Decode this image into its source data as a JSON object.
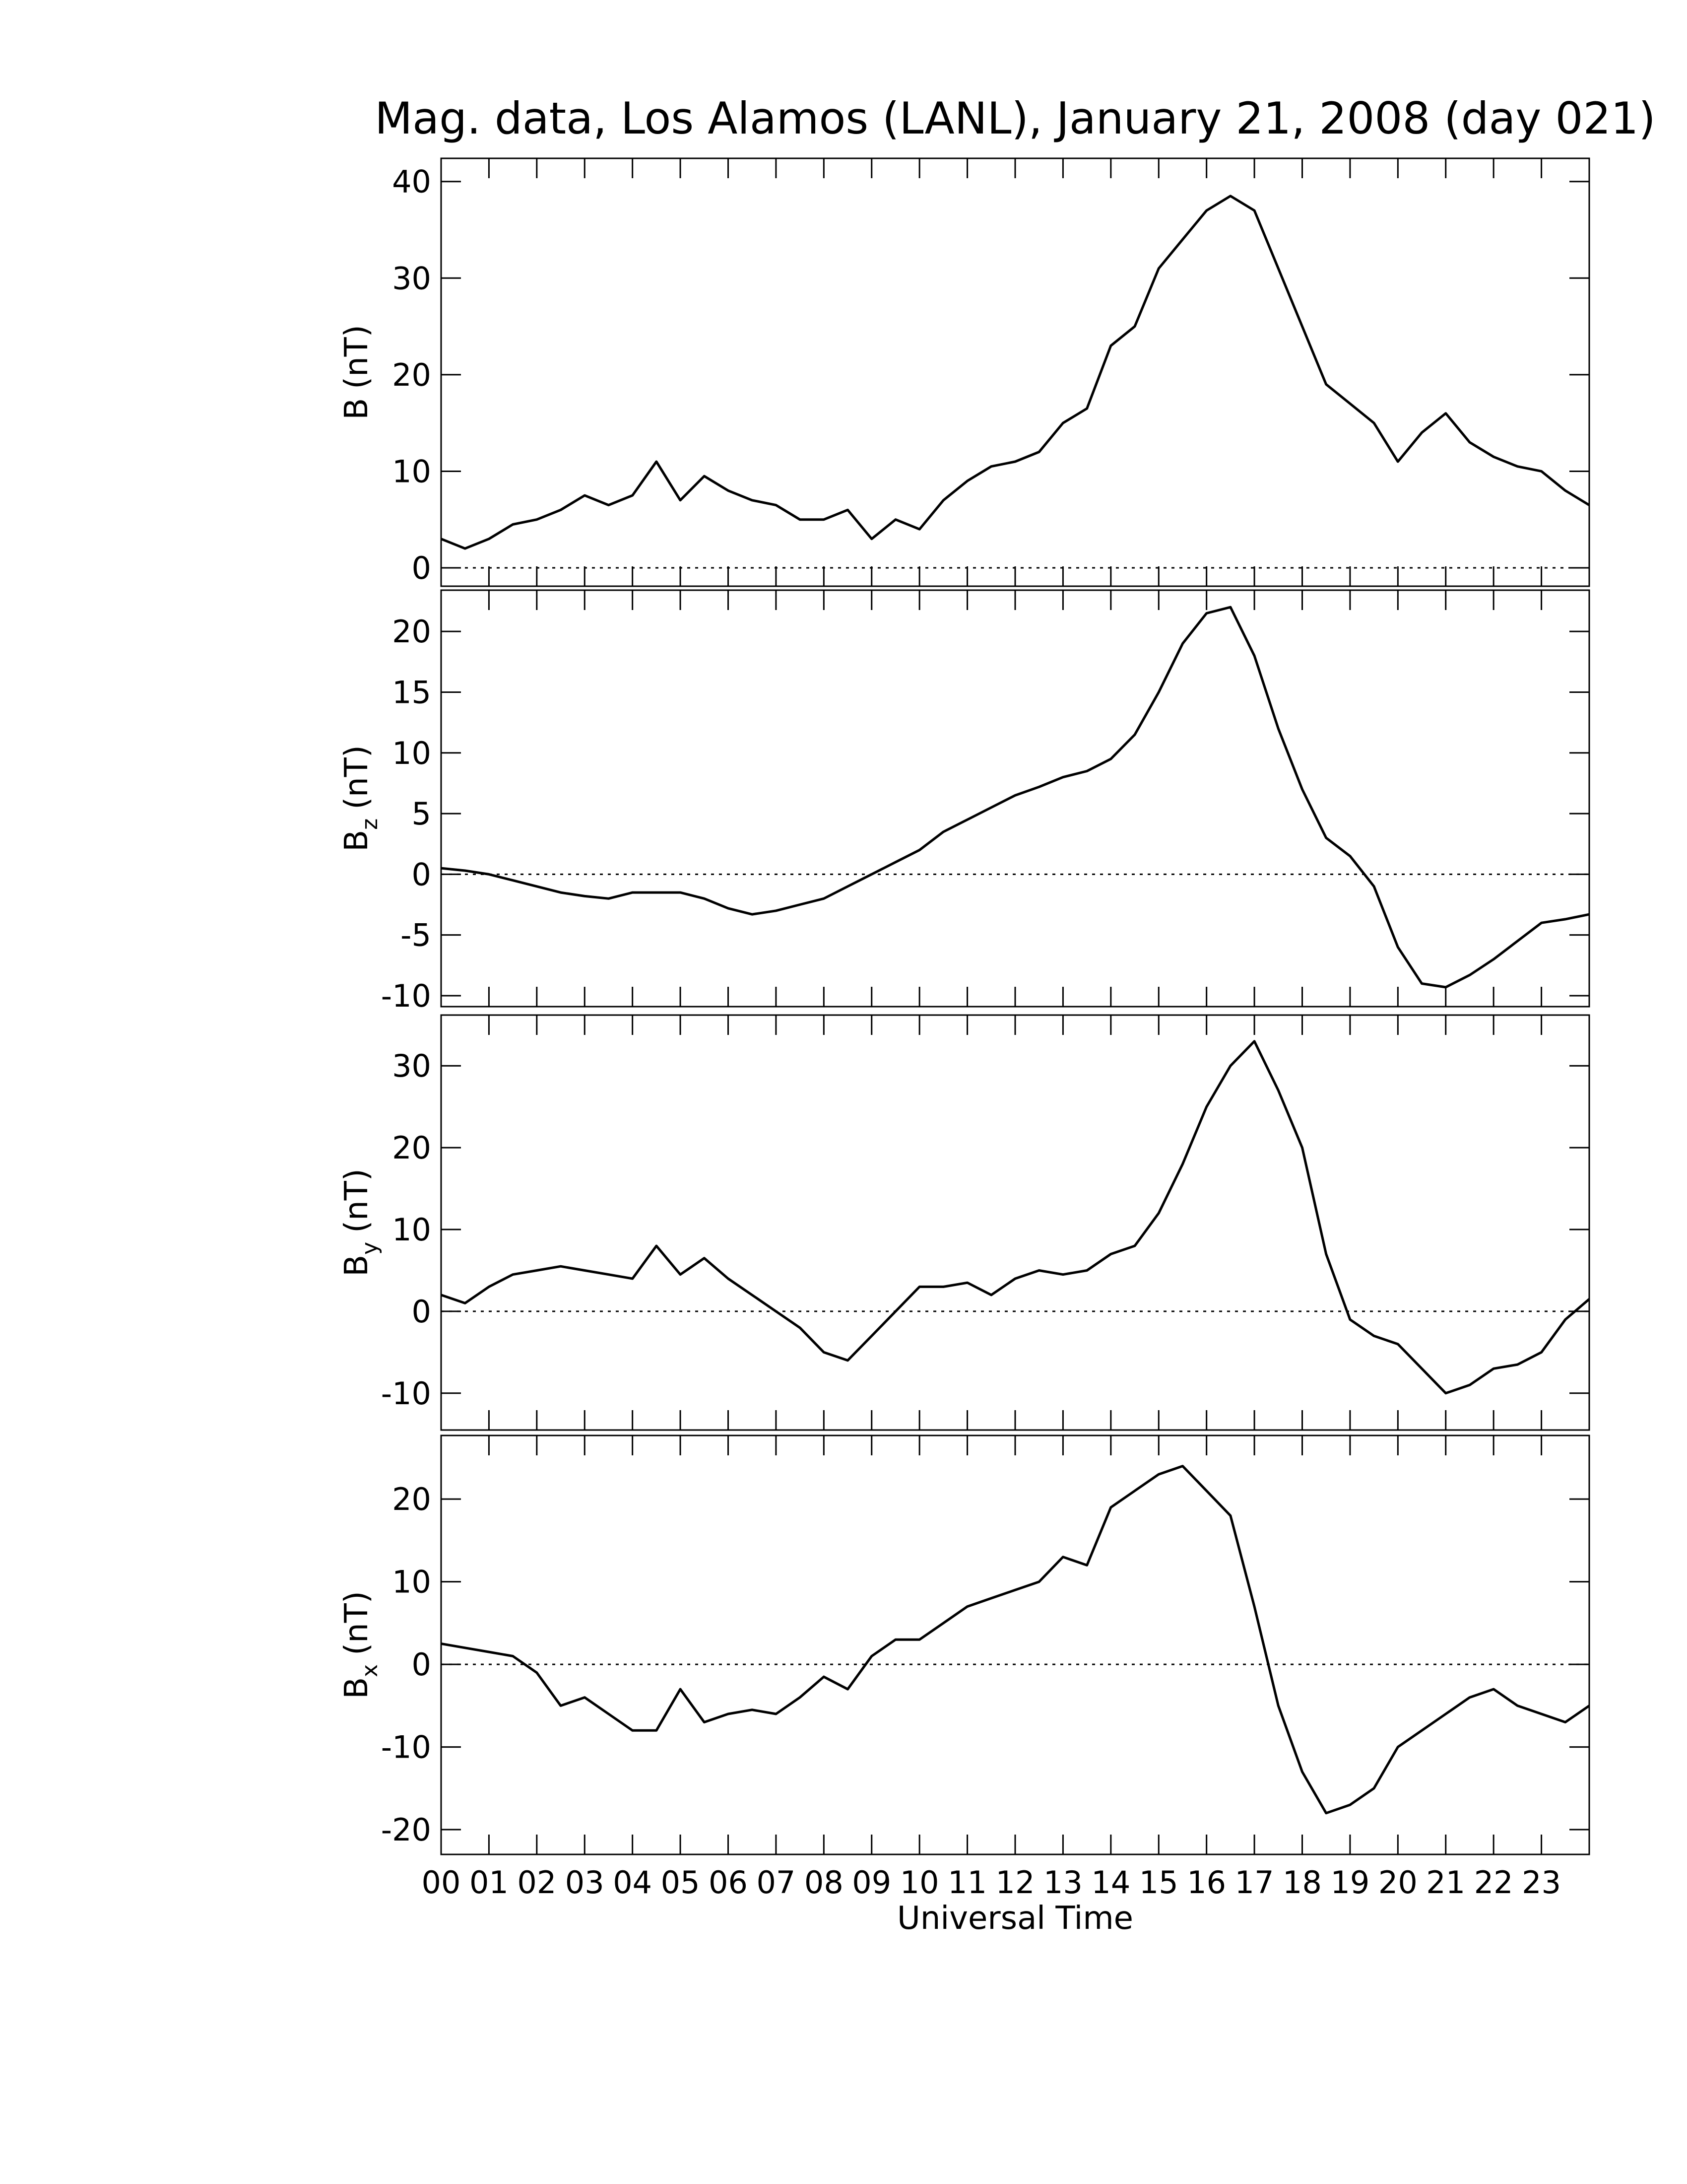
{
  "chart_data": [
    {
      "type": "line",
      "title": "Mag. data, Los Alamos (LANL), January 21, 2008 (day 021)",
      "ylabel": {
        "text": "B",
        "unit": "(nT)"
      },
      "xlim": [
        0,
        24
      ],
      "ylim": [
        -1.9,
        42.4
      ],
      "yticks": [
        0,
        10,
        20,
        30,
        40
      ],
      "zero_line": true,
      "x": [
        0,
        0.5,
        1,
        1.5,
        2,
        2.5,
        3,
        3.5,
        4,
        4.5,
        5,
        5.5,
        6,
        6.5,
        7,
        7.5,
        8,
        8.5,
        9,
        9.5,
        10,
        10.5,
        11,
        11.5,
        12,
        12.5,
        13,
        13.5,
        14,
        14.5,
        15,
        15.5,
        16,
        16.5,
        17,
        17.5,
        18,
        18.5,
        19,
        19.5,
        20,
        20.5,
        21,
        21.5,
        22,
        22.5,
        23,
        23.5,
        24
      ],
      "series": [
        {
          "color": "#000000",
          "values": [
            3,
            2,
            3,
            4.5,
            5,
            6,
            7.5,
            6.5,
            7.5,
            11,
            7,
            9.5,
            8,
            7,
            6.5,
            5,
            5,
            6,
            3,
            5,
            4,
            7,
            9,
            10.5,
            11,
            12,
            15,
            16.5,
            23,
            25,
            31,
            34,
            37,
            38.5,
            37,
            31,
            25,
            19,
            17,
            15,
            11,
            14,
            16,
            13,
            11.5,
            10.5,
            10,
            8,
            6.5
          ]
        }
      ]
    },
    {
      "type": "line",
      "ylabel": {
        "text": "B",
        "subscript": "z",
        "unit": "(nT)"
      },
      "xlim": [
        0,
        24
      ],
      "ylim": [
        -10.9,
        23.4
      ],
      "yticks": [
        -10,
        -5,
        0,
        5,
        10,
        15,
        20
      ],
      "zero_line": true,
      "x": [
        0,
        0.5,
        1,
        1.5,
        2,
        2.5,
        3,
        3.5,
        4,
        4.5,
        5,
        5.5,
        6,
        6.5,
        7,
        7.5,
        8,
        8.5,
        9,
        9.5,
        10,
        10.5,
        11,
        11.5,
        12,
        12.5,
        13,
        13.5,
        14,
        14.5,
        15,
        15.5,
        16,
        16.5,
        17,
        17.5,
        18,
        18.5,
        19,
        19.5,
        20,
        20.5,
        21,
        21.5,
        22,
        22.5,
        23,
        23.5,
        24
      ],
      "series": [
        {
          "color": "#000000",
          "values": [
            0.5,
            0.3,
            0,
            -0.5,
            -1,
            -1.5,
            -1.8,
            -2,
            -1.5,
            -1.5,
            -1.5,
            -2,
            -2.8,
            -3.3,
            -3,
            -2.5,
            -2,
            -1,
            0,
            1,
            2,
            3.5,
            4.5,
            5.5,
            6.5,
            7.2,
            8,
            8.5,
            9.5,
            11.5,
            15,
            19,
            21.5,
            22,
            18,
            12,
            7,
            3,
            1.5,
            -1,
            -6,
            -9,
            -9.3,
            -8.3,
            -7,
            -5.5,
            -4,
            -3.7,
            -3.3
          ]
        }
      ]
    },
    {
      "type": "line",
      "ylabel": {
        "text": "B",
        "subscript": "y",
        "unit": "(nT)"
      },
      "xlim": [
        0,
        24
      ],
      "ylim": [
        -14.5,
        36.2
      ],
      "yticks": [
        -10,
        0,
        10,
        20,
        30
      ],
      "zero_line": true,
      "x": [
        0,
        0.5,
        1,
        1.5,
        2,
        2.5,
        3,
        3.5,
        4,
        4.5,
        5,
        5.5,
        6,
        6.5,
        7,
        7.5,
        8,
        8.5,
        9,
        9.5,
        10,
        10.5,
        11,
        11.5,
        12,
        12.5,
        13,
        13.5,
        14,
        14.5,
        15,
        15.5,
        16,
        16.5,
        17,
        17.5,
        18,
        18.5,
        19,
        19.5,
        20,
        20.5,
        21,
        21.5,
        22,
        22.5,
        23,
        23.5,
        24
      ],
      "series": [
        {
          "color": "#000000",
          "values": [
            2,
            1,
            3,
            4.5,
            5,
            5.5,
            5,
            4.5,
            4,
            8,
            4.5,
            6.5,
            4,
            2,
            0,
            -2,
            -5,
            -6,
            -3,
            0,
            3,
            3,
            3.5,
            2,
            4,
            5,
            4.5,
            5,
            7,
            8,
            12,
            18,
            25,
            30,
            33,
            27,
            20,
            7,
            -1,
            -3,
            -4,
            -7,
            -10,
            -9,
            -7,
            -6.5,
            -5,
            -1,
            1.5
          ]
        }
      ]
    },
    {
      "type": "line",
      "ylabel": {
        "text": "B",
        "subscript": "x",
        "unit": "(nT)"
      },
      "xlabel": "Universal Time",
      "xlim": [
        0,
        24
      ],
      "ylim": [
        -23,
        27.7
      ],
      "yticks": [
        -20,
        -10,
        0,
        10,
        20
      ],
      "zero_line": true,
      "xticks": [
        {
          "value": 0,
          "label": "00"
        },
        {
          "value": 1,
          "label": "01"
        },
        {
          "value": 2,
          "label": "02"
        },
        {
          "value": 3,
          "label": "03"
        },
        {
          "value": 4,
          "label": "04"
        },
        {
          "value": 5,
          "label": "05"
        },
        {
          "value": 6,
          "label": "06"
        },
        {
          "value": 7,
          "label": "07"
        },
        {
          "value": 8,
          "label": "08"
        },
        {
          "value": 9,
          "label": "09"
        },
        10,
        11,
        12,
        13,
        14,
        15,
        16,
        17,
        18,
        19,
        20,
        21,
        22,
        23
      ],
      "x": [
        0,
        0.5,
        1,
        1.5,
        2,
        2.5,
        3,
        3.5,
        4,
        4.5,
        5,
        5.5,
        6,
        6.5,
        7,
        7.5,
        8,
        8.5,
        9,
        9.5,
        10,
        10.5,
        11,
        11.5,
        12,
        12.5,
        13,
        13.5,
        14,
        14.5,
        15,
        15.5,
        16,
        16.5,
        17,
        17.5,
        18,
        18.5,
        19,
        19.5,
        20,
        20.5,
        21,
        21.5,
        22,
        22.5,
        23,
        23.5,
        24
      ],
      "series": [
        {
          "color": "#000000",
          "values": [
            2.5,
            2,
            1.5,
            1,
            -1,
            -5,
            -4,
            -6,
            -8,
            -8,
            -3,
            -7,
            -6,
            -5.5,
            -6,
            -4,
            -1.5,
            -3,
            1,
            3,
            3,
            5,
            7,
            8,
            9,
            10,
            13,
            12,
            19,
            21,
            23,
            24,
            21,
            18,
            7,
            -5,
            -13,
            -18,
            -17,
            -15,
            -10,
            -8,
            -6,
            -4,
            -3,
            -5,
            -6,
            -7,
            -5
          ]
        }
      ]
    }
  ]
}
